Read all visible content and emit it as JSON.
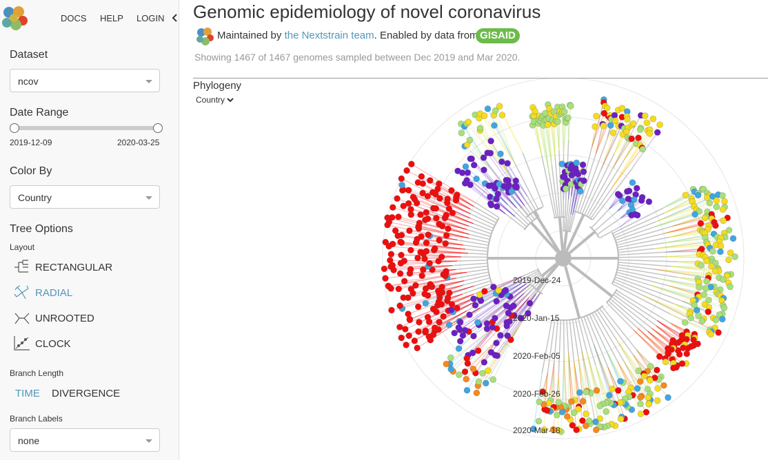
{
  "nav": {
    "docs": "DOCS",
    "help": "HELP",
    "login": "LOGIN"
  },
  "sidebar": {
    "dataset": {
      "label": "Dataset",
      "value": "ncov"
    },
    "date_range": {
      "label": "Date Range",
      "start": "2019-12-09",
      "end": "2020-03-25"
    },
    "color_by": {
      "label": "Color By",
      "value": "Country"
    },
    "tree_options": {
      "title": "Tree Options",
      "layout_label": "Layout",
      "layouts": [
        "RECTANGULAR",
        "RADIAL",
        "UNROOTED",
        "CLOCK"
      ],
      "branch_length": {
        "label": "Branch Length",
        "options": [
          "TIME",
          "DIVERGENCE"
        ]
      },
      "branch_labels": {
        "label": "Branch Labels",
        "value": "none"
      }
    }
  },
  "header": {
    "title": "Genomic epidemiology of novel coronavirus",
    "maintained": "Maintained by ",
    "team_link": "the Nextstrain team",
    "enabled": ". Enabled by data from ",
    "gisaid": "GISAID",
    "summary": "Showing 1467 of 1467 genomes sampled between Dec 2019 and Mar 2020."
  },
  "panel": {
    "title": "Phylogeny",
    "color_select": "Country",
    "time_rings": [
      "2019-Dec-24",
      "2020-Jan-15",
      "2020-Feb-05",
      "2020-Feb-26",
      "2020-Mar-18"
    ]
  }
}
